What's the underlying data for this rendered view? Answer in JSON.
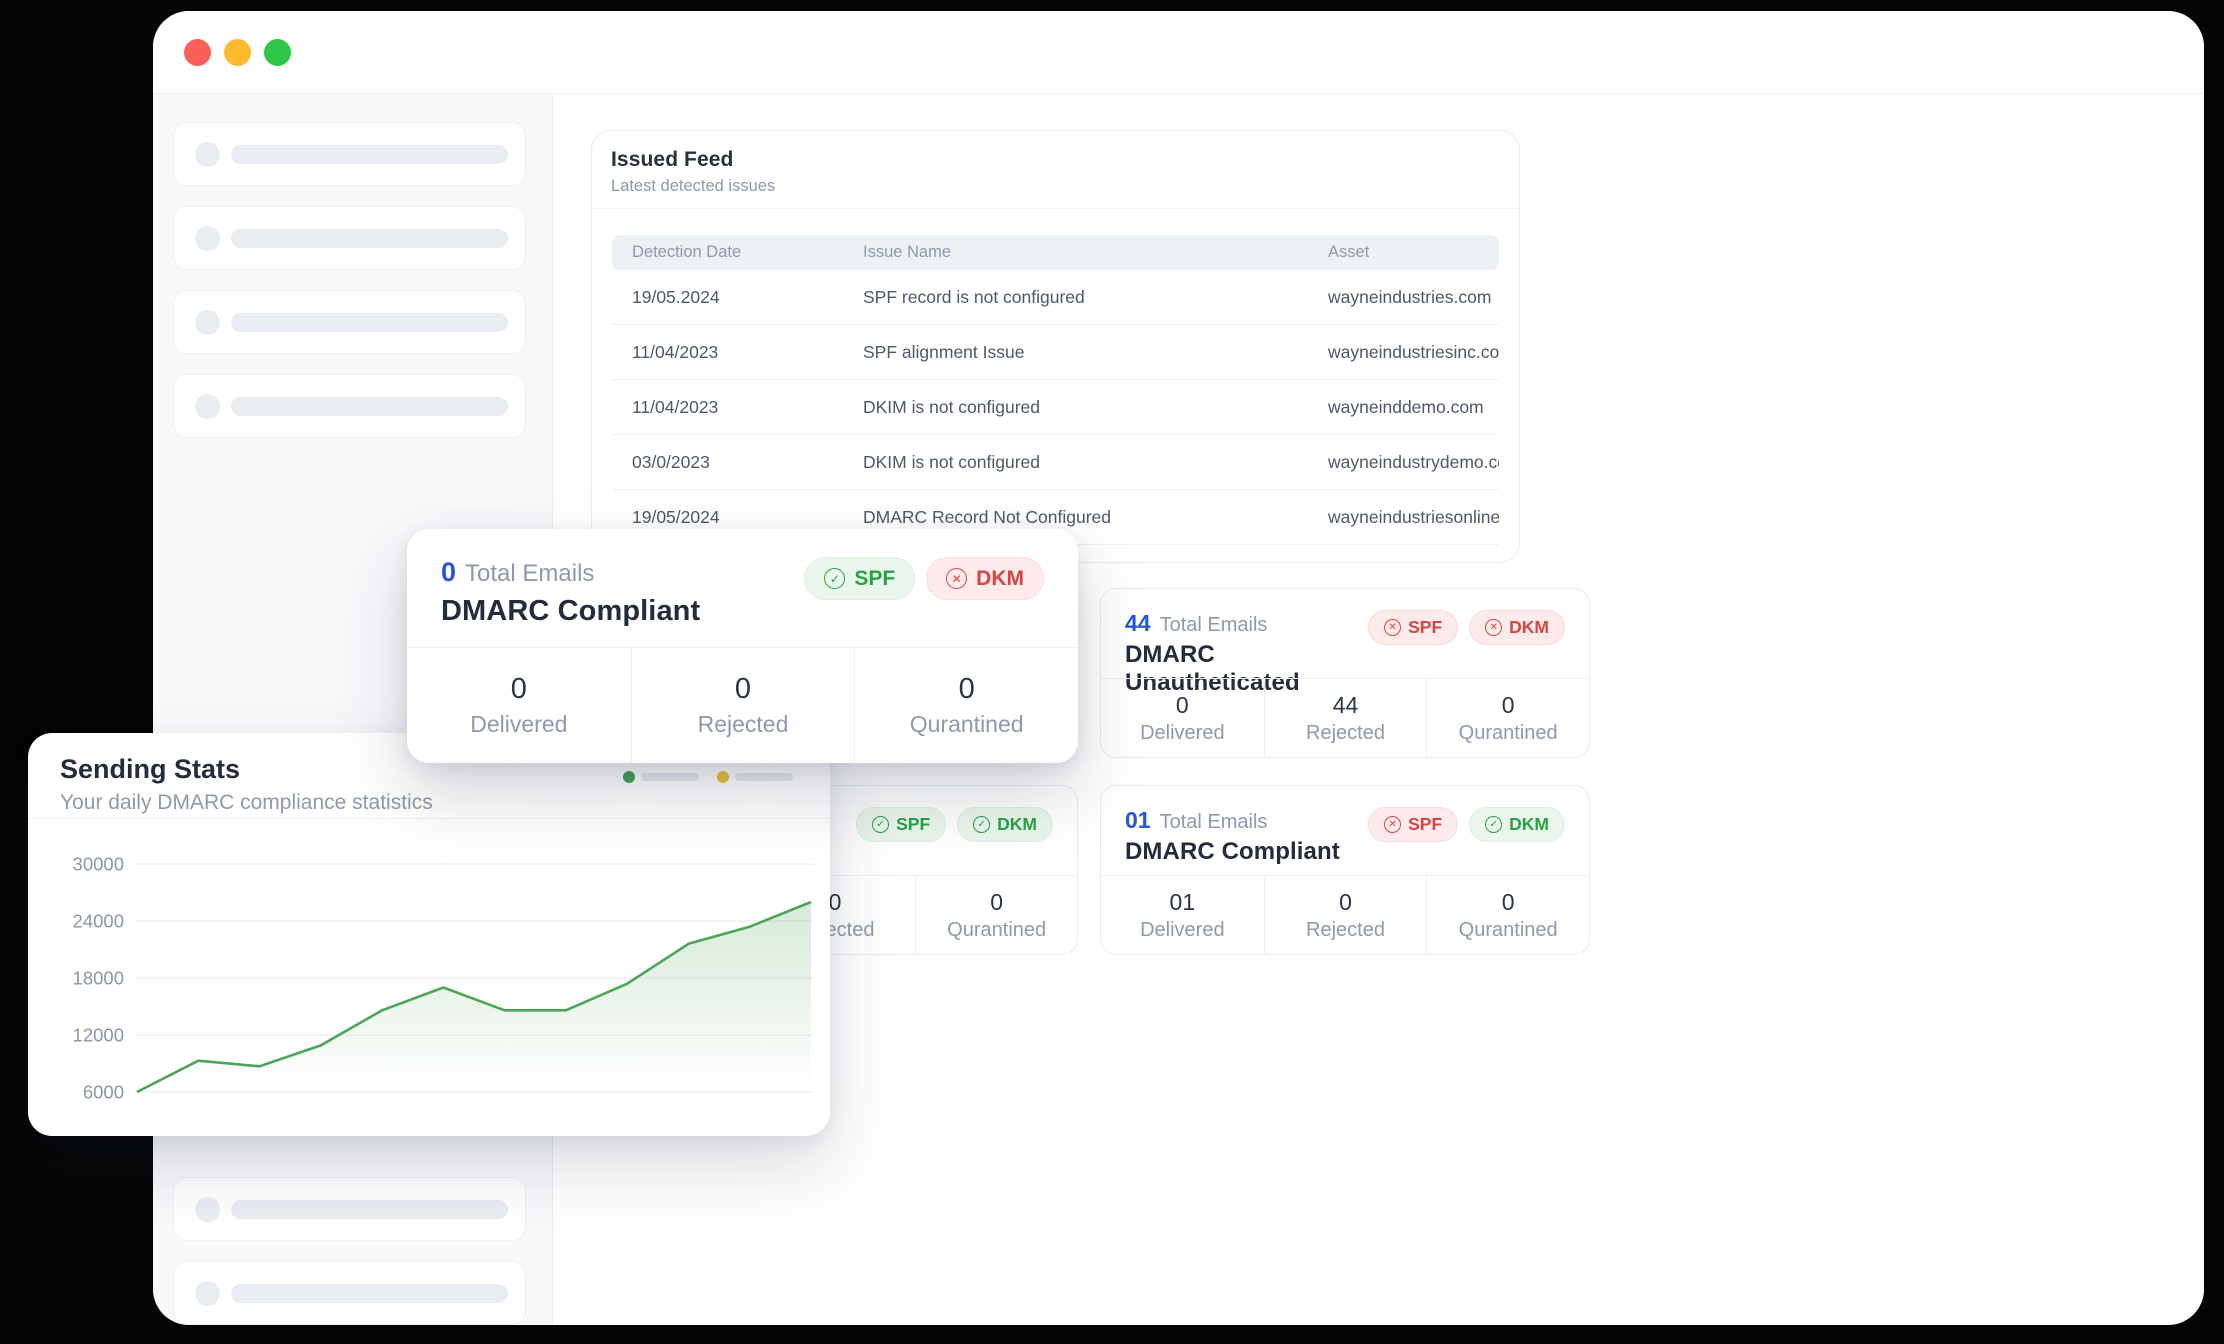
{
  "window": {
    "traffic_lights": [
      {
        "name": "close-button",
        "color": "#f9605a"
      },
      {
        "name": "minimize-button",
        "color": "#fcbb2f"
      },
      {
        "name": "zoom-button",
        "color": "#2ec747"
      }
    ]
  },
  "sidebar": {
    "top_skeleton_count": 4,
    "bottom_skeleton_count": 2
  },
  "issued_feed": {
    "title": "Issued Feed",
    "subtitle": "Latest detected issues",
    "columns": [
      "Detection Date",
      "Issue Name",
      "Asset"
    ],
    "rows": [
      {
        "date": "19/05.2024",
        "issue": "SPF record is not configured",
        "asset": "wayneindustries.com"
      },
      {
        "date": "11/04/2023",
        "issue": "SPF alignment Issue",
        "asset": "wayneindustriesinc.com"
      },
      {
        "date": "11/04/2023",
        "issue": "DKIM is not configured",
        "asset": "wayneinddemo.com"
      },
      {
        "date": "03/0/2023",
        "issue": "DKIM is not configured",
        "asset": "wayneindustrydemo.com"
      },
      {
        "date": "19/05/2024",
        "issue": "DMARC Record Not Configured",
        "asset": "wayneindustriesonline.co"
      }
    ]
  },
  "cards": [
    {
      "id": "dmarc-compliant-featured",
      "variant": "lg",
      "position": "card-overlay",
      "total": "0",
      "total_label": "Total Emails",
      "title": "DMARC Compliant",
      "badges": [
        {
          "label": "SPF",
          "status": "pass"
        },
        {
          "label": "DKM",
          "status": "fail"
        }
      ],
      "stats": [
        {
          "value": "0",
          "label": "Delivered"
        },
        {
          "value": "0",
          "label": "Rejected"
        },
        {
          "value": "0",
          "label": "Qurantined"
        }
      ]
    },
    {
      "id": "dmarc-unautheticated",
      "variant": "sm",
      "position": "card-44",
      "total": "44",
      "total_label": "Total Emails",
      "title": "DMARC Unautheticated",
      "badges": [
        {
          "label": "SPF",
          "status": "fail"
        },
        {
          "label": "DKM",
          "status": "fail"
        }
      ],
      "stats": [
        {
          "value": "0",
          "label": "Delivered"
        },
        {
          "value": "44",
          "label": "Rejected"
        },
        {
          "value": "0",
          "label": "Qurantined"
        }
      ]
    },
    {
      "id": "dmarc-partially-hidden",
      "variant": "sm",
      "position": "card-hidden",
      "total": "",
      "total_label": "",
      "title": "",
      "badges": [
        {
          "label": "SPF",
          "status": "pass"
        },
        {
          "label": "DKM",
          "status": "pass"
        }
      ],
      "stats": [
        {
          "value": "",
          "label": ""
        },
        {
          "value": "0",
          "label": "Rejected"
        },
        {
          "value": "0",
          "label": "Qurantined"
        }
      ]
    },
    {
      "id": "dmarc-compliant",
      "variant": "sm",
      "position": "card-01",
      "total": "01",
      "total_label": "Total Emails",
      "title": "DMARC Compliant",
      "badges": [
        {
          "label": "SPF",
          "status": "fail"
        },
        {
          "label": "DKM",
          "status": "pass"
        }
      ],
      "stats": [
        {
          "value": "01",
          "label": "Delivered"
        },
        {
          "value": "0",
          "label": "Rejected"
        },
        {
          "value": "0",
          "label": "Qurantined"
        }
      ]
    }
  ],
  "sending_stats": {
    "title": "Sending Stats",
    "subtitle": "Your daily DMARC compliance statistics",
    "legend_dots": [
      "#e15f5f",
      "#eda24c",
      "#3fa457",
      "#e8c23d"
    ]
  },
  "chart_data": {
    "type": "area",
    "title": "Sending Stats",
    "x": [
      1,
      2,
      3,
      4,
      5,
      6,
      7,
      8,
      9,
      10,
      11,
      12
    ],
    "values": [
      6000,
      9300,
      8700,
      10900,
      14600,
      17000,
      14600,
      14600,
      17400,
      21600,
      23400,
      26000
    ],
    "yticks": [
      30000,
      24000,
      18000,
      12000,
      6000
    ],
    "ylim": [
      6000,
      30000
    ],
    "xlabel": "",
    "ylabel": "",
    "grid": "horizontal",
    "line_color": "#4ca556",
    "fill_color": "#5da962",
    "legend_position": "top-right"
  },
  "colors": {
    "accent_blue": "#2856d9",
    "pass_green": "#27a344",
    "fail_red": "#d64545",
    "chart_green": "#4ca556",
    "sidebar_bg": "#f8f9fb",
    "skeleton": "#e9ecf1"
  }
}
